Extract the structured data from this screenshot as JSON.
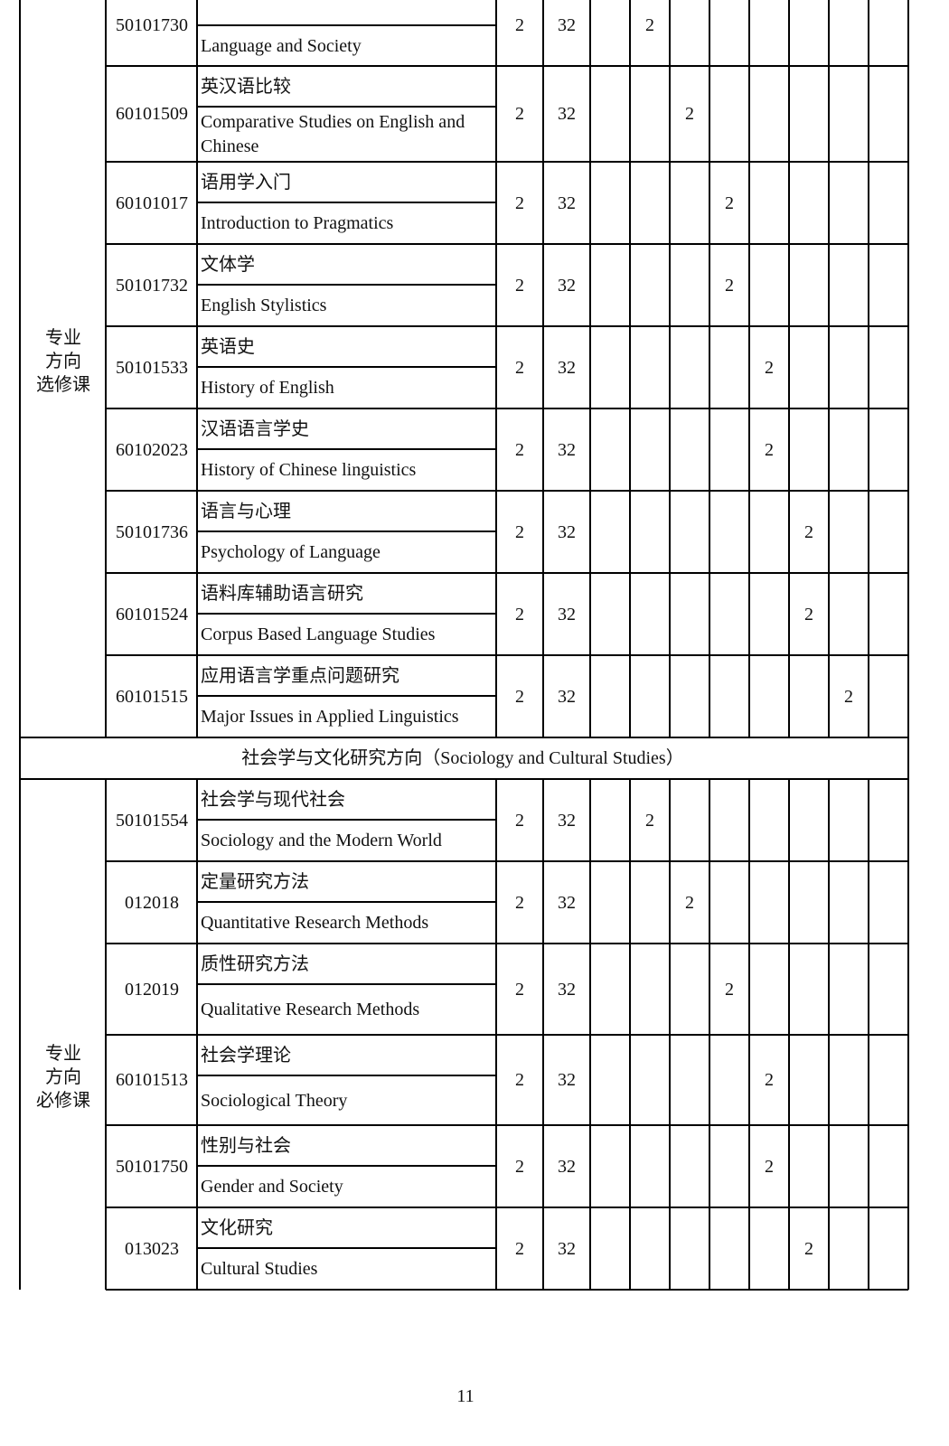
{
  "table": {
    "groups": [
      {
        "category": [
          "专业",
          "方向",
          "选修课"
        ],
        "rows": [
          {
            "code": "50101730",
            "name_en": "Language and Society",
            "credits": 2,
            "hours": 32,
            "terms": [
              null,
              2,
              null,
              null,
              null,
              null,
              null,
              null
            ]
          },
          {
            "code": "60101509",
            "name_cn": "英汉语比较",
            "name_en": "Comparative Studies on English and Chinese",
            "credits": 2,
            "hours": 32,
            "terms": [
              null,
              null,
              2,
              null,
              null,
              null,
              null,
              null
            ]
          },
          {
            "code": "60101017",
            "name_cn": "语用学入门",
            "name_en": "Introduction to Pragmatics",
            "credits": 2,
            "hours": 32,
            "terms": [
              null,
              null,
              null,
              2,
              null,
              null,
              null,
              null
            ]
          },
          {
            "code": "50101732",
            "name_cn": "文体学",
            "name_en": "English Stylistics",
            "credits": 2,
            "hours": 32,
            "terms": [
              null,
              null,
              null,
              2,
              null,
              null,
              null,
              null
            ]
          },
          {
            "code": "50101533",
            "name_cn": "英语史",
            "name_en": "History of English",
            "credits": 2,
            "hours": 32,
            "terms": [
              null,
              null,
              null,
              null,
              2,
              null,
              null,
              null
            ]
          },
          {
            "code": "60102023",
            "name_cn": "汉语语言学史",
            "name_en": "History of Chinese linguistics",
            "credits": 2,
            "hours": 32,
            "terms": [
              null,
              null,
              null,
              null,
              2,
              null,
              null,
              null
            ]
          },
          {
            "code": "50101736",
            "name_cn": "语言与心理",
            "name_en": "Psychology of Language",
            "credits": 2,
            "hours": 32,
            "terms": [
              null,
              null,
              null,
              null,
              null,
              2,
              null,
              null
            ]
          },
          {
            "code": "60101524",
            "name_cn": "语料库辅助语言研究",
            "name_en": "Corpus Based Language Studies",
            "credits": 2,
            "hours": 32,
            "terms": [
              null,
              null,
              null,
              null,
              null,
              2,
              null,
              null
            ]
          },
          {
            "code": "60101515",
            "name_cn": "应用语言学重点问题研究",
            "name_en": "Major Issues in Applied Linguistics",
            "credits": 2,
            "hours": 32,
            "terms": [
              null,
              null,
              null,
              null,
              null,
              null,
              2,
              null
            ]
          }
        ]
      },
      {
        "section": "社会学与文化研究方向（Sociology and Cultural Studies）",
        "category": [
          "专业",
          "方向",
          "必修课"
        ],
        "rows": [
          {
            "code": "50101554",
            "name_cn": "社会学与现代社会",
            "name_en": "Sociology and the Modern World",
            "credits": 2,
            "hours": 32,
            "terms": [
              null,
              2,
              null,
              null,
              null,
              null,
              null,
              null
            ]
          },
          {
            "code": "012018",
            "name_cn": "定量研究方法",
            "name_en": "Quantitative Research Methods",
            "credits": 2,
            "hours": 32,
            "terms": [
              null,
              null,
              2,
              null,
              null,
              null,
              null,
              null
            ]
          },
          {
            "code": "012019",
            "name_cn": "质性研究方法",
            "name_en": "Qualitative Research Methods",
            "credits": 2,
            "hours": 32,
            "terms": [
              null,
              null,
              null,
              2,
              null,
              null,
              null,
              null
            ]
          },
          {
            "code": "60101513",
            "name_cn": "社会学理论",
            "name_en": "Sociological Theory",
            "credits": 2,
            "hours": 32,
            "terms": [
              null,
              null,
              null,
              null,
              2,
              null,
              null,
              null
            ]
          },
          {
            "code": "50101750",
            "name_cn": "性别与社会",
            "name_en": "Gender and Society",
            "credits": 2,
            "hours": 32,
            "terms": [
              null,
              null,
              null,
              null,
              2,
              null,
              null,
              null
            ]
          },
          {
            "code": "013023",
            "name_cn": "文化研究",
            "name_en": "Cultural Studies",
            "credits": 2,
            "hours": 32,
            "terms": [
              null,
              null,
              null,
              null,
              null,
              2,
              null,
              null
            ]
          }
        ]
      }
    ],
    "page_number": "11"
  }
}
